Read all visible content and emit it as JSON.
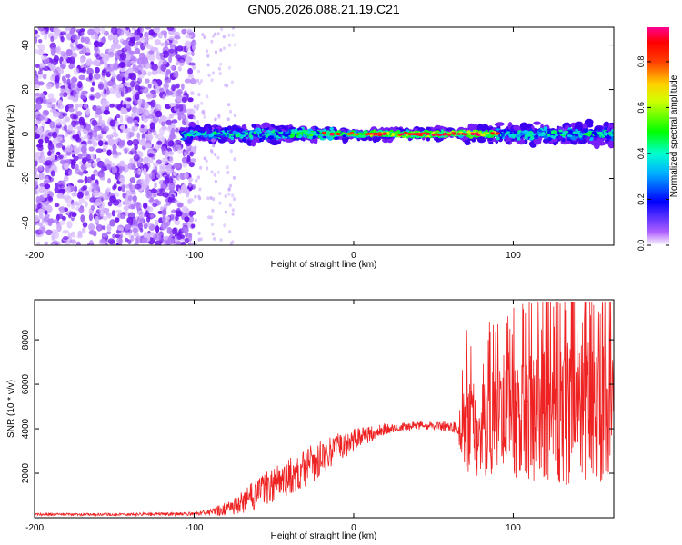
{
  "figure_title": "GN05.2026.088.21.19.C21",
  "chart_data": [
    {
      "type": "heatmap",
      "xlabel": "Height of straight line (km)",
      "ylabel": "Frequency (Hz)",
      "xlim": [
        -200,
        163
      ],
      "ylim": [
        -50,
        48
      ],
      "xticks": [
        -200,
        -100,
        0,
        100
      ],
      "xtick_labels": [
        "-200",
        "-100",
        "0",
        "100"
      ],
      "yticks": [
        -40,
        -20,
        0,
        20,
        40
      ],
      "ytick_labels": [
        "-40",
        "-20",
        "0",
        "20",
        "40"
      ],
      "colorbar": {
        "label": "Normalized spectral amplitude",
        "range": [
          0,
          0.95
        ],
        "ticks": [
          0,
          0.2,
          0.4,
          0.6,
          0.8
        ],
        "tick_labels": [
          "0.0",
          "0.2",
          "0.4",
          "0.6",
          "0.8"
        ],
        "colormap": [
          "#ffffff",
          "#a000ff",
          "#0000ff",
          "#00ffff",
          "#00ff00",
          "#ffff00",
          "#ff8000",
          "#ff0000",
          "#ff00a0"
        ]
      },
      "features": {
        "noise_region_x": [
          -200,
          -100
        ],
        "band_x": [
          -107,
          163
        ],
        "band_center_hz": 0,
        "peak_amplitude_x_range": [
          20,
          90
        ]
      }
    },
    {
      "type": "line",
      "xlabel": "Height of straight line (km)",
      "ylabel": "SNR (10 * v/v)",
      "xlim": [
        -200,
        163
      ],
      "ylim": [
        0,
        9800
      ],
      "xticks": [
        -200,
        -100,
        0,
        100
      ],
      "xtick_labels": [
        "-200",
        "-100",
        "0",
        "100"
      ],
      "yticks": [
        2000,
        4000,
        6000,
        8000
      ],
      "ytick_labels": [
        "2000",
        "4000",
        "6000",
        "8000"
      ],
      "series": [
        {
          "name": "SNR",
          "color": "#ee2222",
          "x": [
            -200,
            -150,
            -100,
            -90,
            -80,
            -70,
            -60,
            -50,
            -40,
            -30,
            -20,
            -10,
            0,
            10,
            20,
            30,
            40,
            50,
            60,
            65,
            70,
            80,
            90,
            100,
            110,
            120,
            130,
            140,
            150,
            160
          ],
          "y": [
            150,
            150,
            170,
            250,
            400,
            700,
            1100,
            1500,
            1900,
            2300,
            2700,
            3100,
            3500,
            3800,
            4000,
            4100,
            4150,
            4150,
            4100,
            4000,
            4000,
            4200,
            4300,
            4400,
            4500,
            4600,
            4700,
            4900,
            4900,
            5000
          ],
          "amplitude": [
            60,
            60,
            80,
            150,
            300,
            500,
            700,
            800,
            900,
            900,
            800,
            700,
            500,
            400,
            250,
            200,
            200,
            200,
            250,
            300,
            2300,
            2300,
            2500,
            2700,
            2800,
            3000,
            3200,
            3500,
            3500,
            3500
          ],
          "peak_max": 9700
        }
      ]
    }
  ]
}
